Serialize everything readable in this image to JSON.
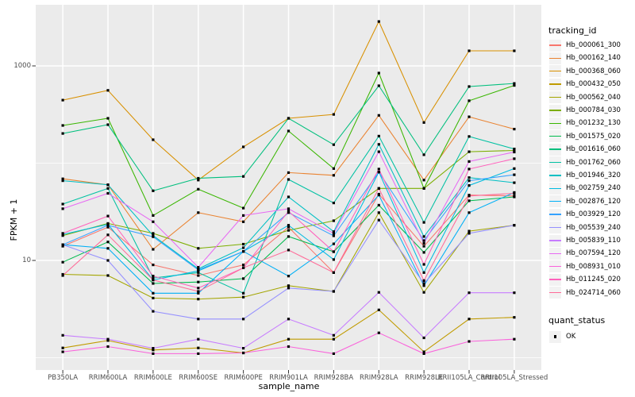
{
  "figure": {
    "y_axis": {
      "title": "FPKM + 1",
      "tick_labels": [
        "1000",
        "10"
      ],
      "tick_values": [
        1000,
        10
      ]
    },
    "x_axis": {
      "title": "sample_name"
    },
    "legend": {
      "title": "tracking_id"
    },
    "quant_legend": {
      "title": "quant_status",
      "entries": [
        {
          "label": "OK",
          "shape": "black-square"
        }
      ]
    }
  },
  "chart_data": {
    "type": "line",
    "title": "",
    "xlabel": "sample_name",
    "ylabel": "FPKM + 1",
    "y_scale": "log10",
    "y_tick_values": [
      10,
      1000
    ],
    "y_minor_gridline_values": [
      1,
      100
    ],
    "ylim_log": [
      0.87,
      3.75
    ],
    "grid": true,
    "grid_color": "#FFFFFF",
    "panel_background": "#EBEBEB",
    "legend_position": "right",
    "point_shape": "filled-square",
    "point_color": "#000000",
    "x": [
      "PB350LA",
      "RRIM600LA",
      "RRIM600LE",
      "RRIM600SE",
      "RRIM600PE",
      "RRIM901LA",
      "RRIM928BA",
      "RRIM928LA",
      "RRIM928LE",
      "RRII105LA_Control",
      "RRII105LA_Stressed"
    ],
    "series": [
      {
        "name": "Hb_000061_300",
        "color": "#F8766D",
        "values": [
          14,
          22,
          9,
          7,
          9,
          22,
          7.5,
          48,
          14,
          47,
          46
        ]
      },
      {
        "name": "Hb_000162_140",
        "color": "#EA8331",
        "values": [
          69,
          60,
          13,
          31,
          25,
          80,
          75,
          310,
          67,
          300,
          224
        ]
      },
      {
        "name": "Hb_000368_060",
        "color": "#D89000",
        "values": [
          445,
          560,
          174,
          67,
          147,
          289,
          317,
          2860,
          262,
          1430,
          1430
        ]
      },
      {
        "name": "Hb_000432_050",
        "color": "#C09B00",
        "values": [
          1.26,
          1.5,
          1.2,
          1.26,
          1.12,
          1.55,
          1.55,
          3.1,
          1.15,
          2.5,
          2.6
        ]
      },
      {
        "name": "Hb_000562_040",
        "color": "#A3A500",
        "values": [
          7.2,
          7.0,
          4.1,
          4.0,
          4.2,
          5.5,
          4.8,
          31,
          4.7,
          20,
          23
        ]
      },
      {
        "name": "Hb_000784_030",
        "color": "#7CAE00",
        "values": [
          18,
          24,
          19,
          13.3,
          14.7,
          20.4,
          25.6,
          55,
          55,
          131,
          135
        ]
      },
      {
        "name": "Hb_001232_130",
        "color": "#39B600",
        "values": [
          244,
          289,
          29,
          54,
          34.5,
          214,
          88,
          845,
          55,
          438,
          630
        ]
      },
      {
        "name": "Hb_001575_020",
        "color": "#00BB4E",
        "values": [
          9.6,
          15.5,
          5.8,
          6.0,
          6.5,
          17.6,
          12.3,
          37,
          12.1,
          41,
          45
        ]
      },
      {
        "name": "Hb_001616_060",
        "color": "#00BF7D",
        "values": [
          202,
          249,
          52,
          70,
          73,
          289,
          155,
          625,
          122,
          613,
          660
        ]
      },
      {
        "name": "Hb_001762_060",
        "color": "#00C1A3",
        "values": [
          38,
          55,
          6.6,
          7.5,
          4.6,
          68,
          39,
          190,
          24.6,
          188,
          140
        ]
      },
      {
        "name": "Hb_001946_320",
        "color": "#00BFC4",
        "values": [
          66,
          60,
          18,
          8.2,
          13.5,
          45,
          19.8,
          156,
          17.6,
          71,
          63
        ]
      },
      {
        "name": "Hb_002759_240",
        "color": "#00BAE0",
        "values": [
          18.5,
          23.5,
          6.3,
          7.8,
          12.4,
          23,
          10.2,
          81,
          7.5,
          59,
          88
        ]
      },
      {
        "name": "Hb_002876_120",
        "color": "#00B0F6",
        "values": [
          14.5,
          13.3,
          4.6,
          4.6,
          12.4,
          6.9,
          14.8,
          47,
          5.5,
          31,
          50
        ]
      },
      {
        "name": "Hb_003929_120",
        "color": "#35A2FF",
        "values": [
          14.5,
          23,
          17.5,
          8.0,
          12.4,
          31,
          17.9,
          81,
          16,
          66,
          76
        ]
      },
      {
        "name": "Hb_005539_240",
        "color": "#9590FF",
        "values": [
          14.5,
          10,
          3.0,
          2.5,
          2.5,
          5.2,
          4.8,
          26,
          5.8,
          19,
          23
        ]
      },
      {
        "name": "Hb_005839_110",
        "color": "#C77CFF",
        "values": [
          1.7,
          1.55,
          1.25,
          1.55,
          1.25,
          2.5,
          1.7,
          4.7,
          1.6,
          4.65,
          4.65
        ]
      },
      {
        "name": "Hb_007594_120",
        "color": "#E76BF3",
        "values": [
          34,
          49,
          25,
          8.5,
          29,
          34,
          19,
          131,
          15,
          104,
          130
        ]
      },
      {
        "name": "Hb_008931_010",
        "color": "#FA62DB",
        "values": [
          1.15,
          1.3,
          1.1,
          1.1,
          1.12,
          1.3,
          1.1,
          1.8,
          1.1,
          1.47,
          1.55
        ]
      },
      {
        "name": "Hb_011245_020",
        "color": "#FF62BC",
        "values": [
          19,
          28.6,
          6.9,
          5.2,
          8.4,
          32,
          12.3,
          87,
          9.1,
          87,
          111
        ]
      },
      {
        "name": "Hb_024714_060",
        "color": "#FF6A98",
        "values": [
          7.0,
          18.3,
          6.3,
          4.8,
          8.4,
          12.8,
          7.5,
          55,
          6.2,
          46,
          49
        ]
      }
    ]
  }
}
